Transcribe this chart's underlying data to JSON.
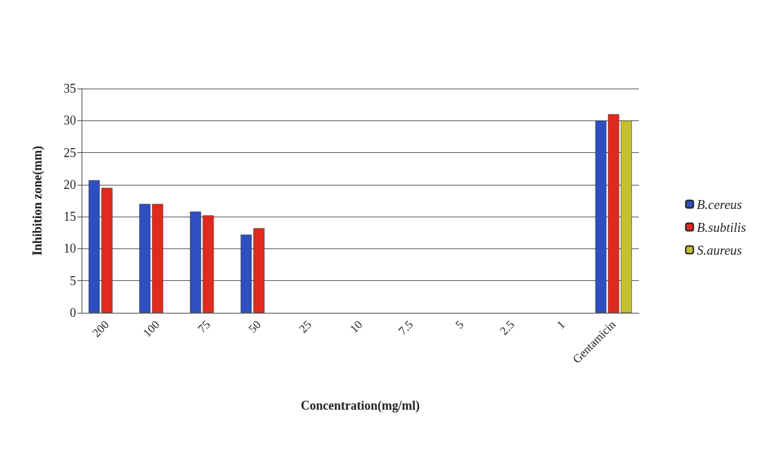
{
  "chart_data": {
    "type": "bar",
    "xlabel": "Concentration(mg/ml)",
    "ylabel": "Inhibition zone(mm)",
    "categories": [
      "200",
      "100",
      "75",
      "50",
      "25",
      "10",
      "7.5",
      "5",
      "2.5",
      "1",
      "Gentamicin"
    ],
    "series": [
      {
        "name": "B.cereus",
        "color": "#2e4fc0",
        "values": [
          20.7,
          17,
          15.8,
          12.2,
          null,
          null,
          null,
          null,
          null,
          null,
          30
        ]
      },
      {
        "name": "B.subtilis",
        "color": "#e02a1e",
        "values": [
          19.5,
          17,
          15.2,
          13.2,
          null,
          null,
          null,
          null,
          null,
          null,
          31
        ]
      },
      {
        "name": "S.aureus",
        "color": "#c4c030",
        "values": [
          null,
          null,
          null,
          null,
          null,
          null,
          null,
          null,
          null,
          null,
          30
        ]
      }
    ],
    "ylim": [
      0,
      35
    ],
    "yticks": [
      0,
      5,
      10,
      15,
      20,
      25,
      30,
      35
    ],
    "grid": "y",
    "legend": "right"
  }
}
